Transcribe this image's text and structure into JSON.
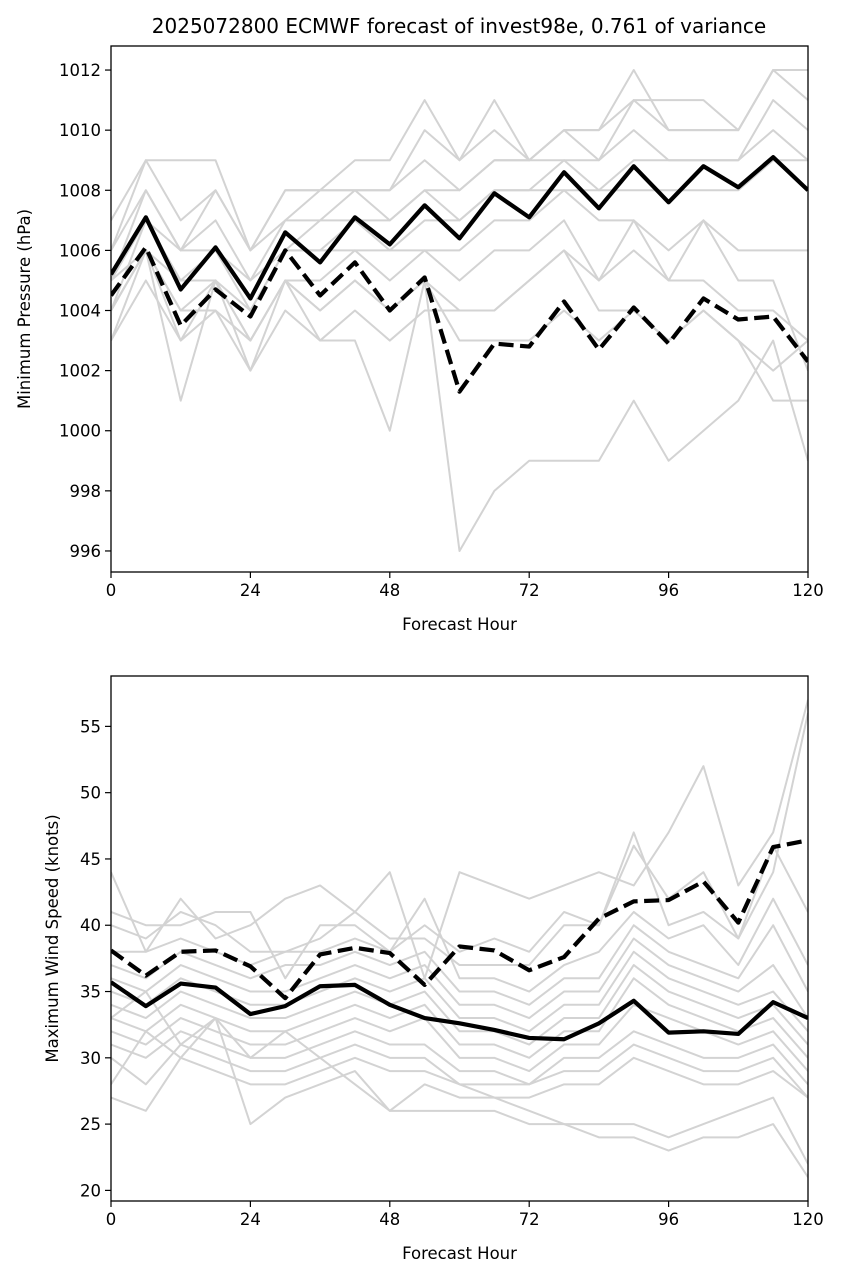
{
  "figure": {
    "title": "2025072800 ECMWF forecast of invest98e, 0.761 of variance"
  },
  "chart_data": [
    {
      "type": "line",
      "xlabel": "Forecast Hour",
      "ylabel": "Minimum Pressure (hPa)",
      "xlim": [
        0,
        120
      ],
      "ylim": [
        995.3,
        1012.8
      ],
      "xticks": [
        0,
        24,
        48,
        72,
        96,
        120
      ],
      "yticks": [
        996,
        998,
        1000,
        1002,
        1004,
        1006,
        1008,
        1010,
        1012
      ],
      "grid": false,
      "x": [
        0,
        6,
        12,
        18,
        24,
        30,
        36,
        42,
        48,
        54,
        60,
        66,
        72,
        78,
        84,
        90,
        96,
        102,
        108,
        114,
        120
      ],
      "series": [
        {
          "style": "solid",
          "color": "#000000",
          "values": [
            1005.2,
            1007.1,
            1004.7,
            1006.1,
            1004.4,
            1006.6,
            1005.6,
            1007.1,
            1006.2,
            1007.5,
            1006.4,
            1007.9,
            1007.1,
            1008.6,
            1007.4,
            1008.8,
            1007.6,
            1008.8,
            1008.1,
            1009.1,
            1008.0
          ]
        },
        {
          "style": "dashed",
          "color": "#000000",
          "values": [
            1004.5,
            1006.1,
            1003.5,
            1004.7,
            1003.8,
            1006.0,
            1004.5,
            1005.6,
            1004.0,
            1005.1,
            1001.3,
            1002.9,
            1002.8,
            1004.3,
            1002.7,
            1004.1,
            1002.9,
            1004.4,
            1003.7,
            1003.8,
            1002.3
          ]
        }
      ],
      "members": [
        [
          1007,
          1009,
          1007,
          1008,
          1006,
          1008,
          1008,
          1009,
          1009,
          1011,
          1009,
          1011,
          1009,
          1010,
          1010,
          1012,
          1010,
          1010,
          1010,
          1012,
          1012
        ],
        [
          1006,
          1009,
          1009,
          1009,
          1006,
          1008,
          1008,
          1008,
          1008,
          1010,
          1009,
          1010,
          1009,
          1010,
          1010,
          1011,
          1011,
          1011,
          1010,
          1012,
          1011
        ],
        [
          1006,
          1008,
          1006,
          1008,
          1006,
          1007,
          1008,
          1008,
          1008,
          1009,
          1008,
          1009,
          1009,
          1010,
          1009,
          1011,
          1010,
          1010,
          1010,
          1012,
          1012
        ],
        [
          1005,
          1008,
          1006,
          1007,
          1005,
          1007,
          1007,
          1008,
          1007,
          1008,
          1008,
          1009,
          1009,
          1009,
          1009,
          1010,
          1009,
          1009,
          1009,
          1011,
          1010
        ],
        [
          1005,
          1007,
          1006,
          1006,
          1005,
          1006,
          1007,
          1007,
          1007,
          1008,
          1007,
          1008,
          1008,
          1009,
          1008,
          1009,
          1009,
          1009,
          1009,
          1010,
          1009
        ],
        [
          1004,
          1007,
          1005,
          1006,
          1004,
          1006,
          1006,
          1007,
          1006,
          1007,
          1007,
          1008,
          1008,
          1008,
          1008,
          1008,
          1008,
          1008,
          1008,
          1009,
          1009
        ],
        [
          1004,
          1006,
          1005,
          1005,
          1004,
          1006,
          1006,
          1006,
          1006,
          1006,
          1006,
          1007,
          1007,
          1008,
          1007,
          1007,
          1006,
          1007,
          1006,
          1006,
          1006
        ],
        [
          1004,
          1006,
          1004,
          1005,
          1003,
          1005,
          1005,
          1006,
          1005,
          1006,
          1005,
          1006,
          1006,
          1007,
          1005,
          1006,
          1005,
          1005,
          1004,
          1004,
          1003
        ],
        [
          1003,
          1006,
          1004,
          1004,
          1003,
          1005,
          1004,
          1005,
          1004,
          1005,
          1004,
          1004,
          1005,
          1006,
          1004,
          1004,
          1003,
          1004,
          1003,
          1002,
          1003
        ],
        [
          1003,
          1005,
          1003,
          1004,
          1002,
          1005,
          1003,
          1004,
          1003,
          1004,
          1004,
          1004,
          1005,
          1006,
          1005,
          1007,
          1005,
          1007,
          1005,
          1005,
          1002
        ],
        [
          1004,
          1006,
          1003,
          1005,
          1003,
          1005,
          1004,
          1005,
          1004,
          1005,
          1003,
          1003,
          1003,
          1004,
          1003,
          1004,
          1003,
          1004,
          1003,
          1001,
          1001
        ],
        [
          1005,
          1006,
          1001,
          1005,
          1002,
          1004,
          1003,
          1003,
          1000,
          1005,
          996,
          998,
          999,
          999,
          999,
          1001,
          999,
          1000,
          1001,
          1003,
          999
        ]
      ]
    },
    {
      "type": "line",
      "xlabel": "Forecast Hour",
      "ylabel": "Maximum Wind Speed (knots)",
      "xlim": [
        0,
        120
      ],
      "ylim": [
        19.2,
        58.8
      ],
      "xticks": [
        0,
        24,
        48,
        72,
        96,
        120
      ],
      "yticks": [
        20,
        25,
        30,
        35,
        40,
        45,
        50,
        55
      ],
      "grid": false,
      "x": [
        0,
        6,
        12,
        18,
        24,
        30,
        36,
        42,
        48,
        54,
        60,
        66,
        72,
        78,
        84,
        90,
        96,
        102,
        108,
        114,
        120
      ],
      "series": [
        {
          "style": "solid",
          "color": "#000000",
          "values": [
            35.7,
            33.9,
            35.6,
            35.3,
            33.3,
            33.9,
            35.4,
            35.5,
            34.0,
            33.0,
            32.6,
            32.1,
            31.5,
            31.4,
            32.6,
            34.3,
            31.9,
            32.0,
            31.8,
            34.2,
            33.0
          ]
        },
        {
          "style": "dashed",
          "color": "#000000",
          "values": [
            38.1,
            36.2,
            38.0,
            38.1,
            36.9,
            34.5,
            37.8,
            38.3,
            37.9,
            35.5,
            38.4,
            38.1,
            36.6,
            37.6,
            40.5,
            41.8,
            41.9,
            43.3,
            40.2,
            45.9,
            46.4
          ]
        }
      ],
      "members": [
        [
          44,
          38,
          42,
          39,
          40,
          42,
          43,
          41,
          44,
          36,
          44,
          43,
          42,
          43,
          44,
          43,
          47,
          52,
          43,
          47,
          57
        ],
        [
          41,
          40,
          40,
          41,
          41,
          36,
          40,
          40,
          38,
          40,
          38,
          39,
          38,
          41,
          40,
          46,
          42,
          44,
          39,
          44,
          56
        ],
        [
          40,
          39,
          41,
          40,
          38,
          38,
          39,
          41,
          39,
          39,
          37,
          37,
          37,
          40,
          40,
          47,
          40,
          41,
          39,
          46,
          41
        ],
        [
          38,
          38,
          39,
          38,
          37,
          38,
          38,
          39,
          38,
          42,
          36,
          36,
          35,
          37,
          38,
          41,
          39,
          40,
          37,
          42,
          37
        ],
        [
          37,
          36,
          38,
          37,
          36,
          37,
          37,
          38,
          37,
          38,
          35,
          35,
          34,
          36,
          36,
          40,
          38,
          37,
          36,
          40,
          35
        ],
        [
          36,
          35,
          37,
          36,
          35,
          35,
          36,
          37,
          36,
          37,
          34,
          34,
          33,
          35,
          35,
          39,
          37,
          36,
          35,
          37,
          33
        ],
        [
          35,
          34,
          36,
          35,
          34,
          34,
          35,
          36,
          35,
          36,
          33,
          33,
          32,
          34,
          34,
          38,
          36,
          35,
          34,
          35,
          32
        ],
        [
          34,
          33,
          35,
          34,
          33,
          33,
          34,
          35,
          34,
          35,
          32,
          32,
          31,
          33,
          33,
          37,
          35,
          34,
          33,
          34,
          31
        ],
        [
          33,
          32,
          34,
          33,
          32,
          32,
          33,
          34,
          33,
          34,
          31,
          31,
          30,
          32,
          32,
          36,
          34,
          33,
          32,
          33,
          30
        ],
        [
          32,
          31,
          33,
          32,
          31,
          31,
          32,
          33,
          32,
          33,
          30,
          30,
          29,
          31,
          31,
          34,
          33,
          32,
          31,
          32,
          29
        ],
        [
          31,
          30,
          32,
          31,
          30,
          30,
          31,
          32,
          31,
          31,
          29,
          29,
          28,
          30,
          30,
          32,
          31,
          30,
          30,
          31,
          28
        ],
        [
          30,
          28,
          31,
          30,
          29,
          29,
          30,
          31,
          30,
          30,
          28,
          28,
          28,
          29,
          29,
          31,
          30,
          29,
          29,
          30,
          27
        ],
        [
          28,
          32,
          30,
          29,
          28,
          28,
          29,
          30,
          29,
          29,
          28,
          27,
          27,
          28,
          28,
          30,
          29,
          28,
          28,
          29,
          27
        ],
        [
          27,
          26,
          30,
          33,
          25,
          27,
          28,
          29,
          26,
          26,
          26,
          26,
          25,
          25,
          25,
          25,
          24,
          25,
          26,
          27,
          22
        ],
        [
          33,
          35,
          31,
          33,
          30,
          32,
          30,
          28,
          26,
          28,
          27,
          27,
          26,
          25,
          24,
          24,
          23,
          24,
          24,
          25,
          21
        ]
      ]
    }
  ]
}
